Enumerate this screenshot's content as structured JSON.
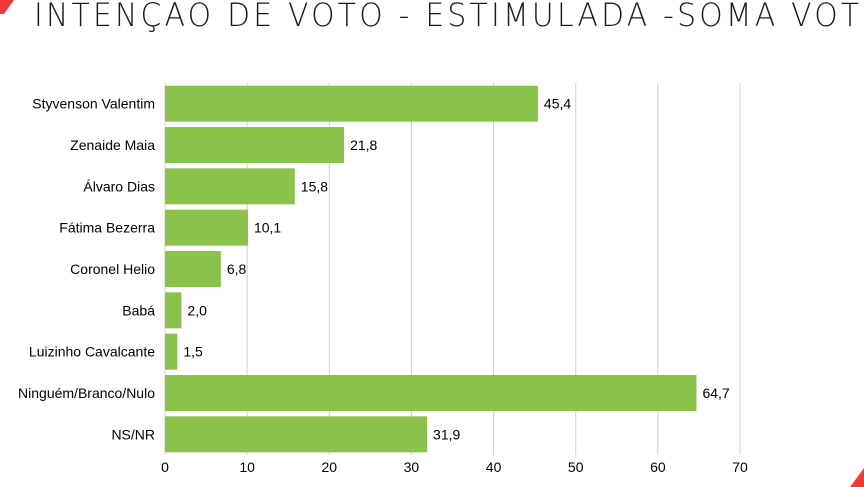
{
  "chart_data": {
    "type": "bar",
    "orientation": "horizontal",
    "title": "INTENÇÃO DE VOTO - ESTIMULADA -SOMA VOTO",
    "categories": [
      "Styvenson Valentim",
      "Zenaide Maia",
      "Álvaro Dias",
      "Fátima Bezerra",
      "Coronel Helio",
      "Babá",
      "Luizinho Cavalcante",
      "Ninguém/Branco/Nulo",
      "NS/NR"
    ],
    "values": [
      45.4,
      21.8,
      15.8,
      10.1,
      6.8,
      2.0,
      1.5,
      64.7,
      31.9
    ],
    "data_labels": [
      "45,4",
      "21,8",
      "15,8",
      "10,1",
      "6,8",
      "2,0",
      "1,5",
      "64,7",
      "31,9"
    ],
    "xlim": [
      0,
      70
    ],
    "xticks": [
      "0",
      "10",
      "20",
      "30",
      "40",
      "50",
      "60",
      "70"
    ],
    "grid": true,
    "bar_color": "#8bc34a",
    "accent_color": "#f03a3a"
  }
}
